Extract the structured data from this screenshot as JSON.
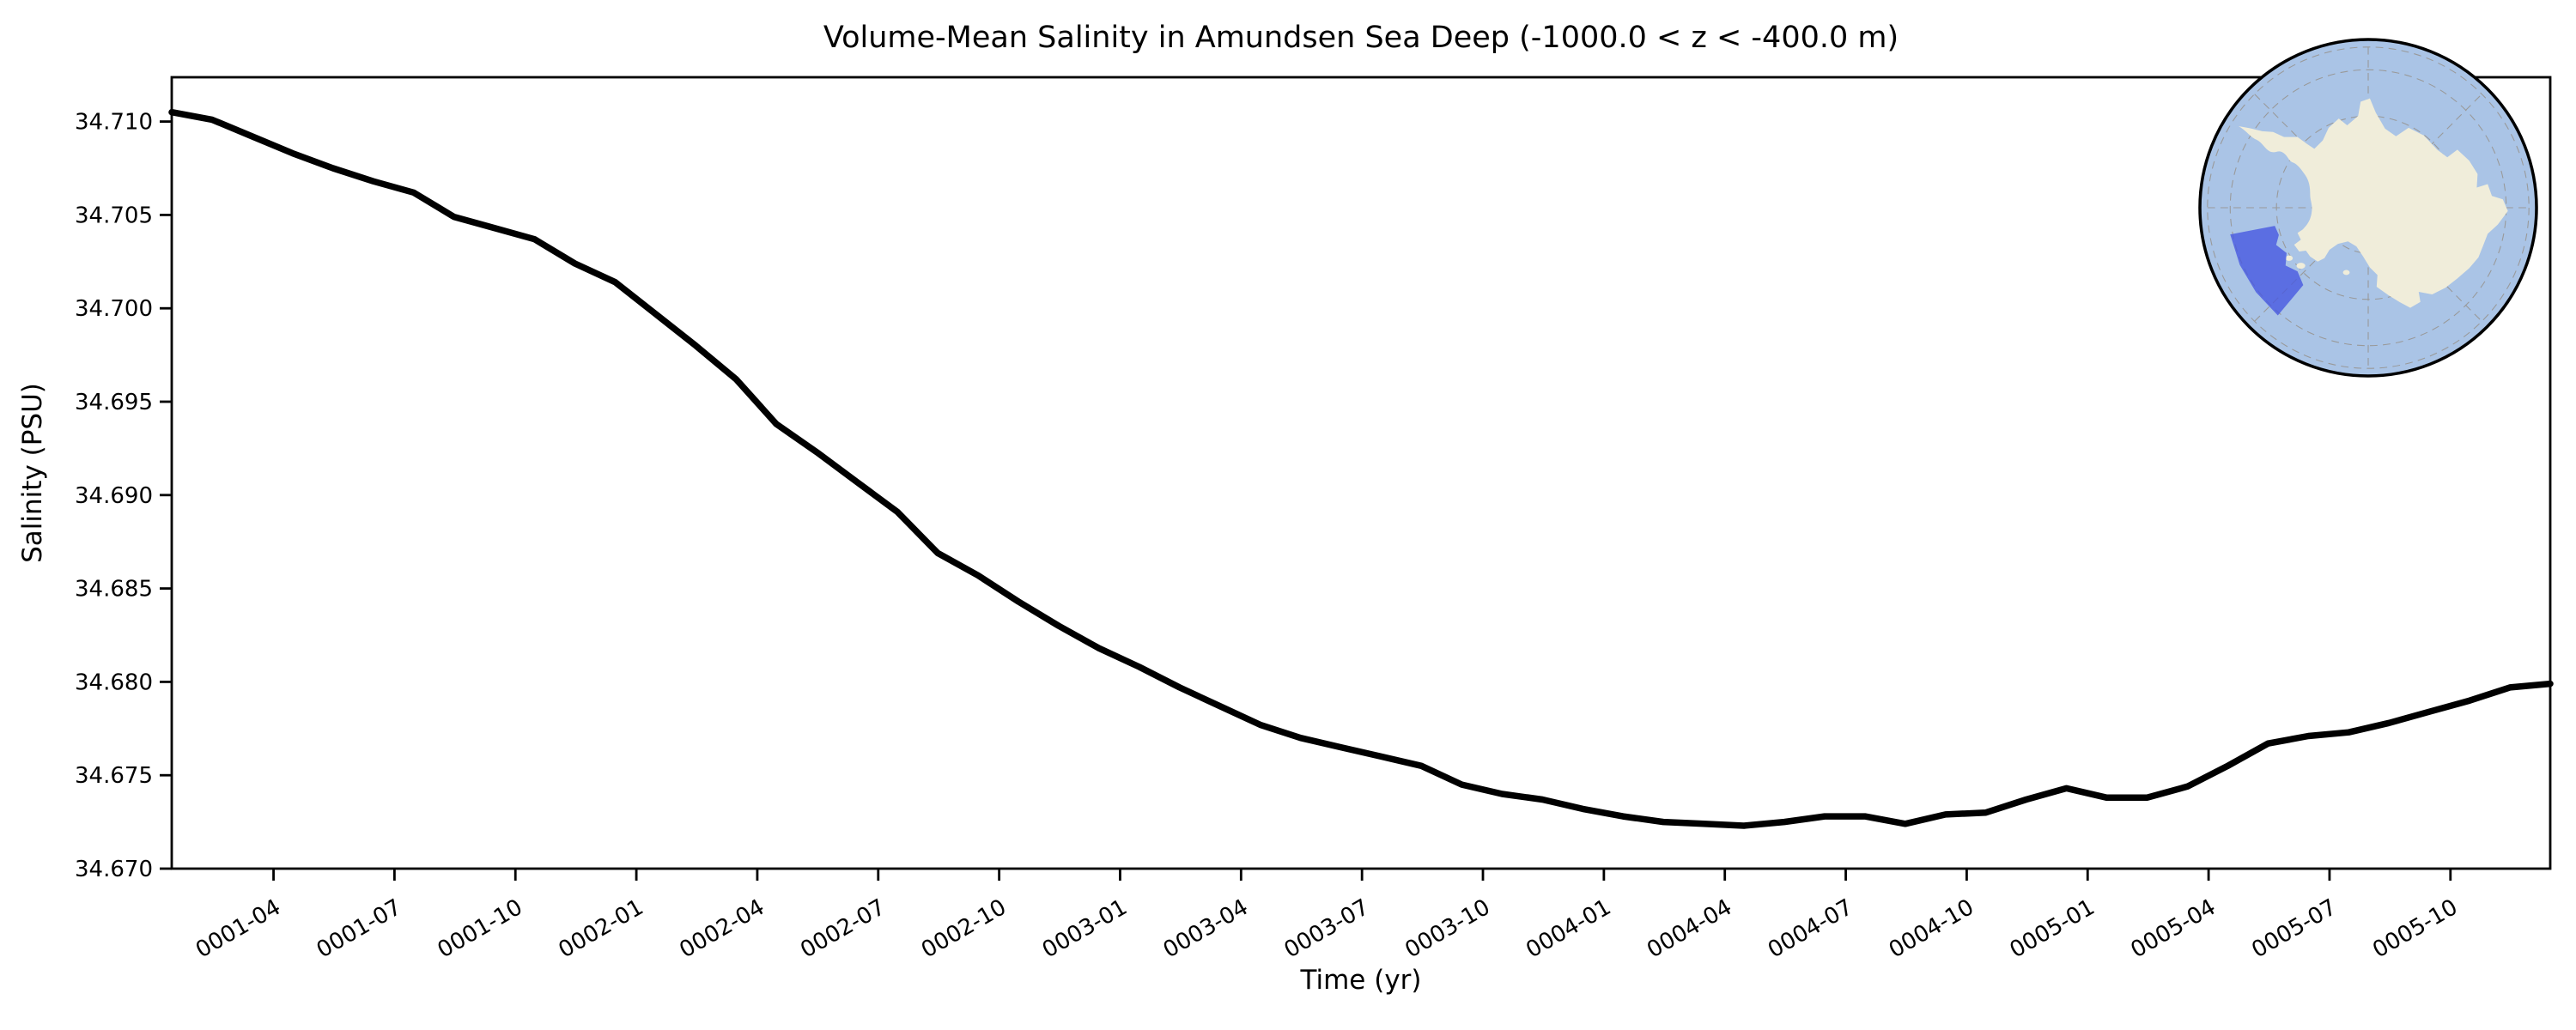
{
  "title": "Volume-Mean Salinity in Amundsen Sea Deep (-1000.0 < z < -400.0 m)",
  "chart_data": {
    "type": "line",
    "title": "Volume-Mean Salinity in Amundsen Sea Deep (-1000.0 < z < -400.0 m)",
    "xlabel": "Time (yr)",
    "ylabel": "Salinity (PSU)",
    "grid": false,
    "legend_position": "none",
    "ylim": [
      34.67,
      34.7124
    ],
    "ytick_step": 0.005,
    "yticks": [
      "34.670",
      "34.675",
      "34.680",
      "34.685",
      "34.690",
      "34.695",
      "34.700",
      "34.705",
      "34.710"
    ],
    "xticks": [
      {
        "label": "0001-04",
        "month": 3
      },
      {
        "label": "0001-07",
        "month": 6
      },
      {
        "label": "0001-10",
        "month": 9
      },
      {
        "label": "0002-01",
        "month": 12
      },
      {
        "label": "0002-04",
        "month": 15
      },
      {
        "label": "0002-07",
        "month": 18
      },
      {
        "label": "0002-10",
        "month": 21
      },
      {
        "label": "0003-01",
        "month": 24
      },
      {
        "label": "0003-04",
        "month": 27
      },
      {
        "label": "0003-07",
        "month": 30
      },
      {
        "label": "0003-10",
        "month": 33
      },
      {
        "label": "0004-01",
        "month": 36
      },
      {
        "label": "0004-04",
        "month": 39
      },
      {
        "label": "0004-07",
        "month": 42
      },
      {
        "label": "0004-10",
        "month": 45
      },
      {
        "label": "0005-01",
        "month": 48
      },
      {
        "label": "0005-04",
        "month": 51
      },
      {
        "label": "0005-07",
        "month": 54
      },
      {
        "label": "0005-10",
        "month": 57
      }
    ],
    "xtick_rotation_deg": -30,
    "x_months": [
      "0001-01",
      "0001-02",
      "0001-03",
      "0001-04",
      "0001-05",
      "0001-06",
      "0001-07",
      "0001-08",
      "0001-09",
      "0001-10",
      "0001-11",
      "0001-12",
      "0002-01",
      "0002-02",
      "0002-03",
      "0002-04",
      "0002-05",
      "0002-06",
      "0002-07",
      "0002-08",
      "0002-09",
      "0002-10",
      "0002-11",
      "0002-12",
      "0003-01",
      "0003-02",
      "0003-03",
      "0003-04",
      "0003-05",
      "0003-06",
      "0003-07",
      "0003-08",
      "0003-09",
      "0003-10",
      "0003-11",
      "0003-12",
      "0004-01",
      "0004-02",
      "0004-03",
      "0004-04",
      "0004-05",
      "0004-06",
      "0004-07",
      "0004-08",
      "0004-09",
      "0004-10",
      "0004-11",
      "0004-12",
      "0005-01",
      "0005-02",
      "0005-03",
      "0005-04",
      "0005-05",
      "0005-06",
      "0005-07",
      "0005-08",
      "0005-09",
      "0005-10",
      "0005-11",
      "0005-12"
    ],
    "series": [
      {
        "name": "volume-mean-salinity",
        "values": [
          34.7105,
          34.7101,
          34.7092,
          34.7083,
          34.7075,
          34.7068,
          34.7062,
          34.7049,
          34.7043,
          34.7037,
          34.7024,
          34.7014,
          34.6997,
          34.698,
          34.6962,
          34.6938,
          34.6923,
          34.6907,
          34.6891,
          34.6869,
          34.6857,
          34.6843,
          34.683,
          34.6818,
          34.6808,
          34.6797,
          34.6787,
          34.6777,
          34.677,
          34.6765,
          34.676,
          34.6755,
          34.6745,
          34.674,
          34.6737,
          34.6732,
          34.6728,
          34.6725,
          34.6724,
          34.6723,
          34.6725,
          34.6728,
          34.6728,
          34.6724,
          34.6729,
          34.673,
          34.6737,
          34.6743,
          34.6738,
          34.6738,
          34.6744,
          34.6755,
          34.6767,
          34.6771,
          34.6773,
          34.6778,
          34.6784,
          34.679,
          34.6797,
          34.6799
        ]
      }
    ],
    "line_color": "#000000",
    "line_width": 7.5
  },
  "inset_map": {
    "semantic": "antarctica-polar-stereographic-inset-with-highlighted-amundsen-sea-sector",
    "colors": {
      "ocean": "#aac4e6",
      "land": "#f0edda",
      "coast": "#8f8f8a",
      "graticule": "#999999",
      "border": "#000000",
      "region_fill": "#4556e0",
      "region_stroke": "#2b2fd4"
    }
  },
  "frame": {
    "background": "#ffffff",
    "spine_color": "#000000"
  }
}
